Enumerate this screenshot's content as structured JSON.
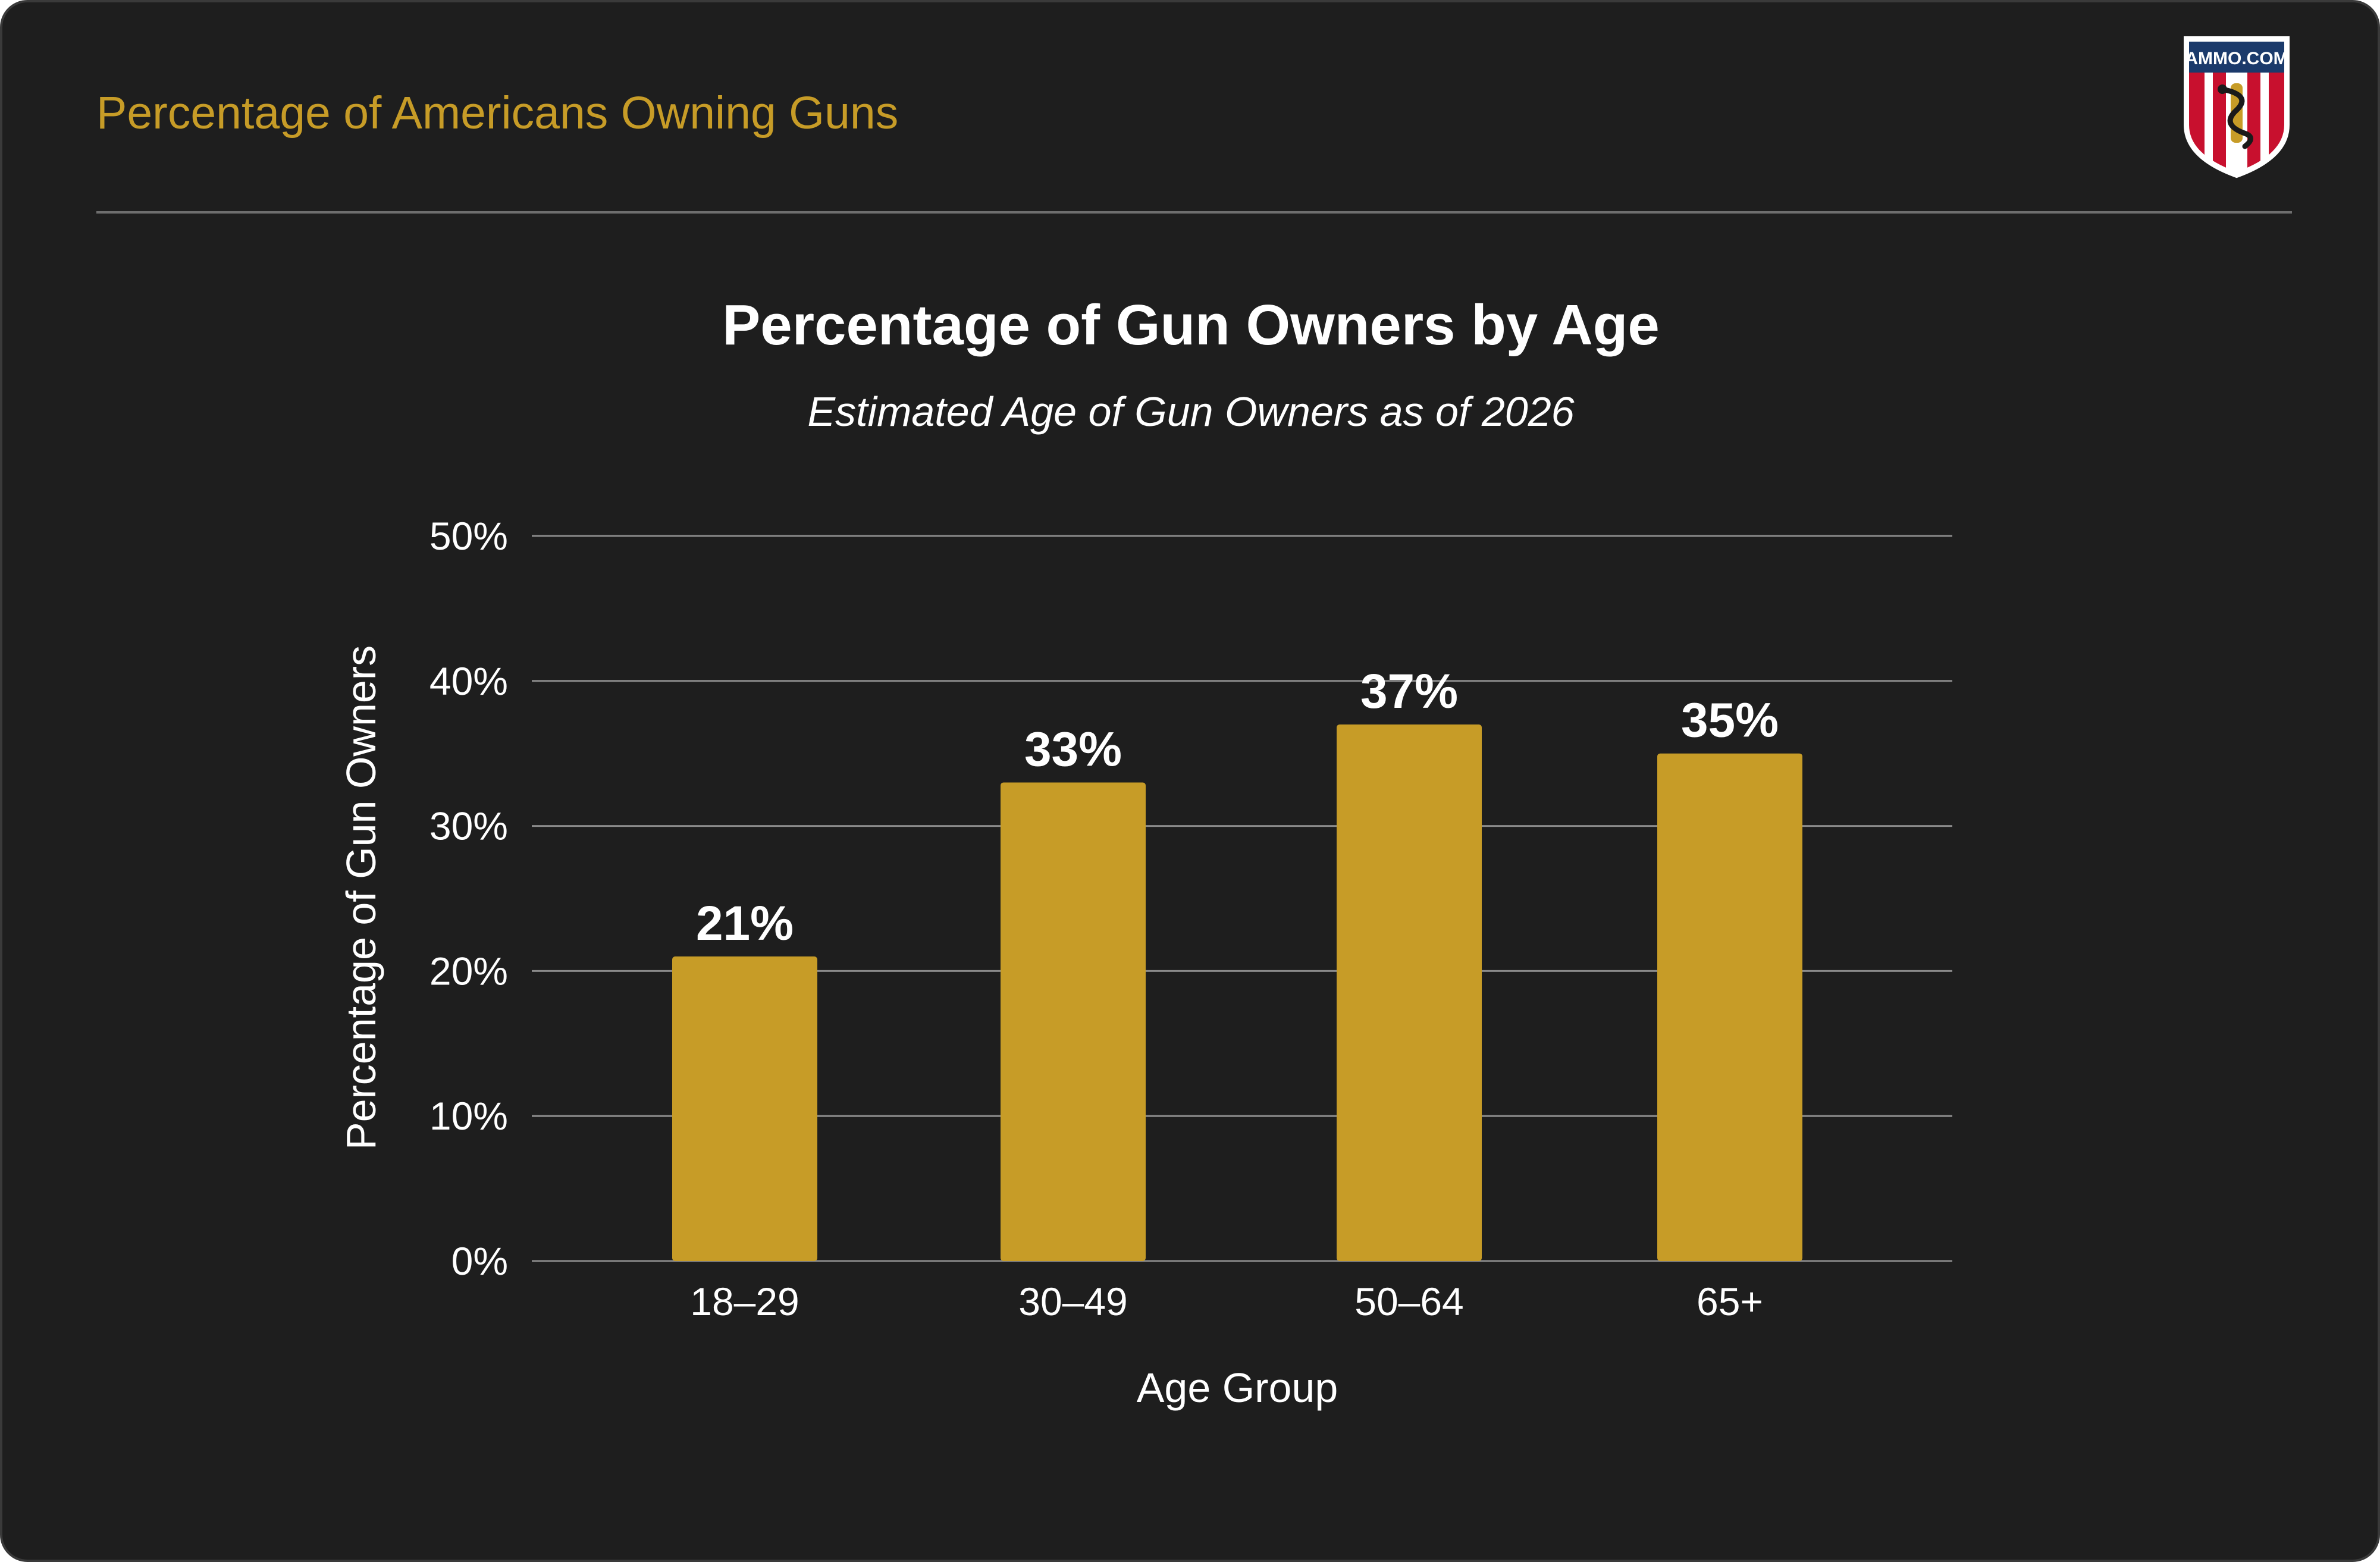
{
  "header": {
    "title": "Percentage of Americans Owning Guns"
  },
  "logo": {
    "text": "AMMO.COM",
    "icon": "shield-snake-logo-icon",
    "colors": {
      "navy": "#1b3a6b",
      "red": "#c8102e",
      "white": "#ffffff",
      "gold": "#c79c27"
    }
  },
  "colors": {
    "background": "#1e1e1e",
    "accent": "#c79c27",
    "bar": "#c79c27",
    "text": "#ffffff",
    "grid": "#8a8a8a"
  },
  "chart_data": {
    "type": "bar",
    "title": "Percentage of Gun Owners by Age",
    "subtitle": "Estimated Age of Gun Owners as of 2026",
    "xlabel": "Age Group",
    "ylabel": "Percentage of Gun Owners",
    "categories": [
      "18–29",
      "30–49",
      "50–64",
      "65+"
    ],
    "values": [
      21,
      33,
      37,
      35
    ],
    "value_labels": [
      "21%",
      "33%",
      "37%",
      "35%"
    ],
    "ylim": [
      0,
      50
    ],
    "yticks": [
      0,
      10,
      20,
      30,
      40,
      50
    ],
    "ytick_labels": [
      "0%",
      "10%",
      "20%",
      "30%",
      "40%",
      "50%"
    ],
    "grid": true,
    "legend": "none"
  }
}
